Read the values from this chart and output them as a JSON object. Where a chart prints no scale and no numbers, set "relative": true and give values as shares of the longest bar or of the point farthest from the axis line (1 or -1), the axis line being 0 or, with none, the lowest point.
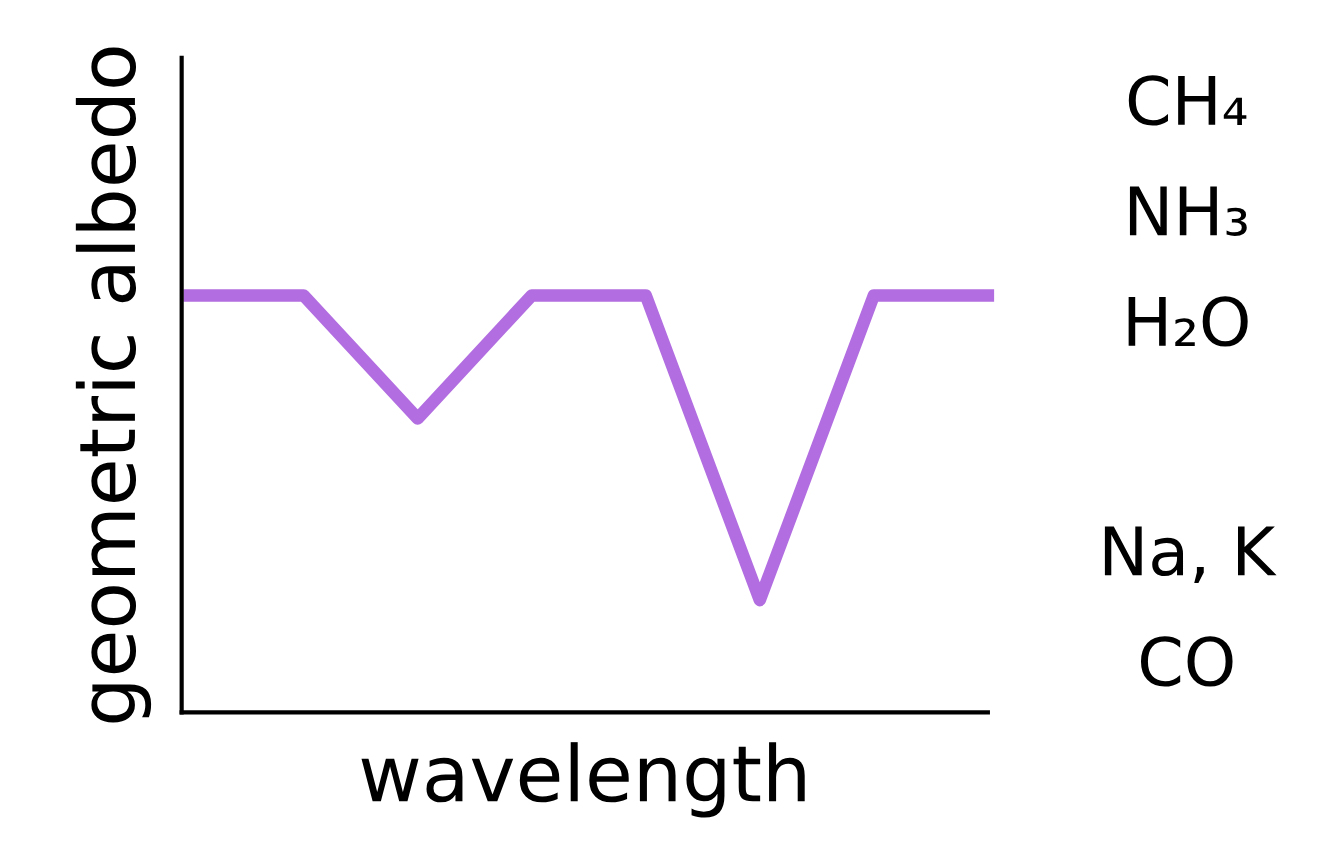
{
  "chart_data": {
    "type": "line",
    "relative": true,
    "xlabel": "wavelength",
    "ylabel": "geometric albedo",
    "categories": [
      null,
      null,
      null,
      null,
      null,
      null,
      null,
      null
    ],
    "series": [
      {
        "color": "#b26ee0",
        "values": [
          1,
          1,
          0.705,
          1,
          1,
          0.269,
          1,
          1
        ]
      }
    ],
    "annotations": [
      "CH₄",
      "NH₃",
      "H₂O",
      "Na, K",
      "CO"
    ],
    "grid": false,
    "legend": false,
    "line_style": "solid"
  }
}
